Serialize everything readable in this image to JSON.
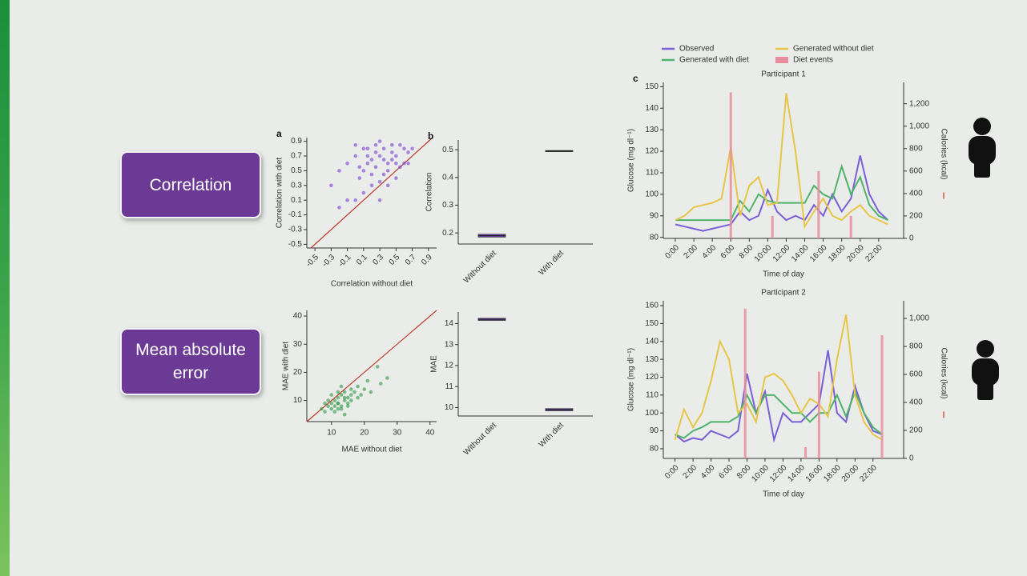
{
  "slide_labels": [
    "Correlation",
    "Mean absolute error"
  ],
  "chart_data": [
    {
      "type": "scatter",
      "panel_label": "a",
      "xlabel": "Correlation without diet",
      "ylabel": "Correlation with diet",
      "color": "#7b3fd6",
      "xlim": [
        -0.6,
        1.0
      ],
      "ylim": [
        -0.55,
        0.95
      ],
      "xticks": [
        -0.5,
        -0.3,
        -0.1,
        0.1,
        0.3,
        0.5,
        0.7,
        0.9
      ],
      "yticks": [
        -0.5,
        -0.3,
        -0.1,
        0.1,
        0.3,
        0.5,
        0.7,
        0.9
      ],
      "x": [
        -0.3,
        -0.2,
        -0.1,
        0,
        0.05,
        0.1,
        0.15,
        0.2,
        0.25,
        0.3,
        0.35,
        0.4,
        0.45,
        0.5,
        0.55,
        0.6,
        0.65,
        0.2,
        0.1,
        0.3,
        0.4,
        0.5,
        0,
        0.15,
        0.25,
        0.35,
        0.45,
        -0.1,
        0.6,
        0.7,
        0.05,
        0.2,
        0.3,
        0.1,
        0.4,
        0.5,
        0.25,
        -0.2,
        0.35,
        0.55,
        0.15,
        0.45,
        0.3,
        0,
        0.65
      ],
      "y": [
        0.3,
        0.5,
        0.6,
        0.7,
        0.4,
        0.8,
        0.6,
        0.65,
        0.55,
        0.7,
        0.8,
        0.6,
        0.75,
        0.7,
        0.85,
        0.8,
        0.75,
        0.45,
        0.2,
        0.35,
        0.5,
        0.6,
        0.1,
        0.7,
        0.85,
        0.45,
        0.65,
        0.1,
        0.6,
        0.8,
        0.55,
        0.3,
        0.9,
        0.5,
        0.3,
        0.4,
        0.75,
        0.0,
        0.65,
        0.55,
        0.8,
        0.85,
        0.1,
        0.85,
        0.6
      ]
    },
    {
      "type": "box",
      "panel_label": "b",
      "ylabel": "Correlation",
      "color": "#7b3fd6",
      "categories": [
        "Without diet",
        "With diet"
      ],
      "ylim": [
        0.16,
        0.535
      ],
      "yticks": [
        0.2,
        0.3,
        0.4,
        0.5
      ],
      "q1": [
        0.185,
        0.493
      ],
      "median": [
        0.19,
        0.495
      ],
      "q3": [
        0.195,
        0.497
      ]
    },
    {
      "type": "scatter",
      "xlabel": "MAE without diet",
      "ylabel": "MAE with diet",
      "color": "#2f9a45",
      "xlim": [
        2.5,
        42
      ],
      "ylim": [
        2.5,
        42
      ],
      "xticks": [
        10,
        20,
        30,
        40
      ],
      "yticks": [
        10,
        20,
        30,
        40
      ],
      "x": [
        7,
        8,
        9,
        10,
        10,
        11,
        11,
        12,
        12,
        13,
        13,
        14,
        14,
        15,
        15,
        16,
        16,
        17,
        18,
        19,
        20,
        22,
        25,
        27,
        9,
        10,
        12,
        13,
        14,
        15,
        16,
        11,
        12,
        13,
        8,
        18,
        21,
        24,
        14,
        12
      ],
      "y": [
        7,
        6,
        8,
        9,
        7,
        10,
        8,
        11,
        9,
        12,
        8,
        10,
        13,
        11,
        9,
        12,
        14,
        13,
        15,
        12,
        14,
        13,
        16,
        18,
        10,
        12,
        13,
        7,
        5,
        8,
        10,
        6,
        7,
        15,
        9,
        11,
        17,
        22,
        11,
        9
      ]
    },
    {
      "type": "box",
      "ylabel": "MAE",
      "color": "#7b3fd6",
      "categories": [
        "Without diet",
        "With diet"
      ],
      "ylim": [
        9.6,
        14.55
      ],
      "yticks": [
        10,
        11,
        12,
        13,
        14
      ],
      "q1": [
        14.15,
        9.85
      ],
      "median": [
        14.2,
        9.9
      ],
      "q3": [
        14.25,
        9.95
      ]
    },
    {
      "type": "line",
      "panel_label": "c",
      "title": "Participant 1",
      "xlabel": "Time of day",
      "ylabel": "Glucose (mg dl⁻¹)",
      "y2label": "Calories (kcal)",
      "legend": "top",
      "xlim": [
        -1.3,
        24.7
      ],
      "ylim": [
        79.5,
        152
      ],
      "y2lim": [
        0,
        1390
      ],
      "xticks": [
        {
          "value": 0,
          "label": "0:00"
        },
        {
          "value": 2,
          "label": "2:00"
        },
        {
          "value": 4,
          "label": "4:00"
        },
        {
          "value": 6,
          "label": "6:00"
        },
        {
          "value": 8,
          "label": "8:00"
        },
        {
          "value": 10,
          "label": "10:00"
        },
        {
          "value": 12,
          "label": "12:00"
        },
        {
          "value": 14,
          "label": "14:00"
        },
        {
          "value": 16,
          "label": "16:00"
        },
        {
          "value": 18,
          "label": "18:00"
        },
        {
          "value": 20,
          "label": "20:00"
        },
        {
          "value": 22,
          "label": "22:00"
        }
      ],
      "yticks": [
        80,
        90,
        100,
        110,
        120,
        130,
        140,
        150
      ],
      "y2ticks": [
        0,
        200,
        400,
        600,
        800,
        {
          "value": 1000,
          "label": "1,000"
        },
        {
          "value": 1200,
          "label": "1,200"
        }
      ],
      "x": [
        0,
        1,
        2,
        3,
        4,
        5,
        6,
        7,
        8,
        9,
        10,
        11,
        12,
        13,
        14,
        15,
        16,
        17,
        18,
        19,
        20,
        21,
        22,
        23
      ],
      "series": [
        {
          "name": "Observed",
          "color": "#7b5fd8",
          "values": [
            86,
            85,
            84,
            83,
            84,
            85,
            86,
            92,
            88,
            90,
            102,
            92,
            88,
            90,
            88,
            95,
            90,
            100,
            92,
            98,
            118,
            100,
            92,
            88
          ]
        },
        {
          "name": "Generated with diet",
          "color": "#4fb36b",
          "values": [
            88,
            88,
            88,
            88,
            88,
            88,
            88,
            97,
            92,
            100,
            97,
            96,
            96,
            96,
            96,
            104,
            100,
            98,
            113,
            100,
            108,
            95,
            90,
            88
          ]
        },
        {
          "name": "Generated without diet",
          "color": "#e8c547",
          "values": [
            88,
            90,
            94,
            95,
            96,
            98,
            122,
            90,
            104,
            108,
            95,
            96,
            147,
            120,
            85,
            92,
            98,
            90,
            88,
            92,
            95,
            90,
            88,
            86
          ]
        },
        {
          "name": "Diet events",
          "color": "#e88e9c",
          "axis": "y2",
          "x": [
            6,
            10.5,
            15.5,
            19
          ],
          "values": [
            1300,
            200,
            600,
            200
          ]
        }
      ]
    },
    {
      "type": "line",
      "title": "Participant 2",
      "xlabel": "Time of day",
      "ylabel": "Glucose (mg dl⁻¹)",
      "y2label": "Calories (kcal)",
      "xlim": [
        -1.3,
        25.4
      ],
      "ylim": [
        74.6,
        162.7
      ],
      "y2lim": [
        0,
        1126
      ],
      "xticks": [
        {
          "value": 0,
          "label": "0:00"
        },
        {
          "value": 2,
          "label": "2:00"
        },
        {
          "value": 4,
          "label": "4:00"
        },
        {
          "value": 6,
          "label": "6:00"
        },
        {
          "value": 8,
          "label": "8:00"
        },
        {
          "value": 10,
          "label": "10:00"
        },
        {
          "value": 12,
          "label": "12:00"
        },
        {
          "value": 14,
          "label": "14:00"
        },
        {
          "value": 16,
          "label": "16:00"
        },
        {
          "value": 18,
          "label": "18:00"
        },
        {
          "value": 20,
          "label": "20:00"
        },
        {
          "value": 22,
          "label": "22:00"
        }
      ],
      "yticks": [
        80,
        90,
        100,
        110,
        120,
        130,
        140,
        150,
        160
      ],
      "y2ticks": [
        0,
        200,
        400,
        600,
        800,
        {
          "value": 1000,
          "label": "1,000"
        }
      ],
      "x": [
        0,
        1,
        2,
        3,
        4,
        5,
        6,
        7,
        8,
        9,
        10,
        11,
        12,
        13,
        14,
        15,
        16,
        17,
        18,
        19,
        20,
        21,
        22,
        23
      ],
      "series": [
        {
          "name": "Observed",
          "color": "#7b5fd8",
          "values": [
            88,
            84,
            86,
            85,
            90,
            88,
            86,
            90,
            122,
            100,
            112,
            85,
            100,
            95,
            95,
            100,
            105,
            135,
            100,
            95,
            115,
            100,
            90,
            88
          ]
        },
        {
          "name": "Generated with diet",
          "color": "#4fb36b",
          "values": [
            88,
            86,
            90,
            92,
            95,
            95,
            95,
            98,
            110,
            100,
            110,
            110,
            105,
            100,
            100,
            95,
            100,
            100,
            110,
            98,
            112,
            100,
            92,
            88
          ]
        },
        {
          "name": "Generated without diet",
          "color": "#e8c547",
          "values": [
            85,
            102,
            92,
            100,
            118,
            140,
            130,
            100,
            105,
            95,
            120,
            122,
            118,
            110,
            100,
            108,
            105,
            98,
            130,
            155,
            110,
            95,
            88,
            85
          ]
        },
        {
          "name": "Diet events",
          "color": "#e88e9c",
          "axis": "y2",
          "x": [
            7.8,
            14.5,
            16,
            23
          ],
          "values": [
            1070,
            80,
            620,
            880
          ]
        }
      ]
    }
  ]
}
